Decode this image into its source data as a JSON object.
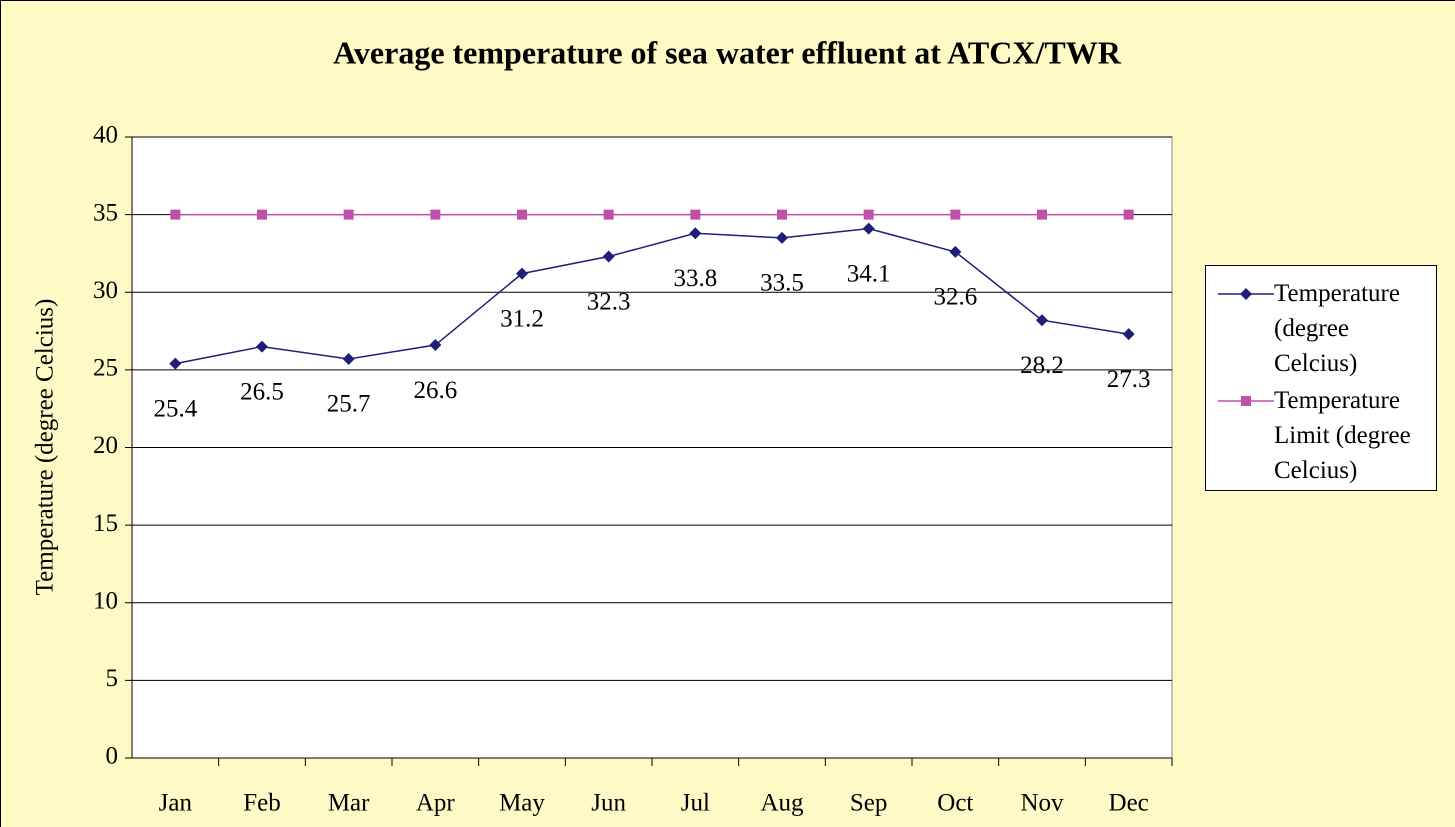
{
  "chart_data": {
    "type": "line",
    "title": "Average temperature of sea water effluent at ATCX/TWR",
    "y_label": "Temperature (degree Celcius)",
    "categories": [
      "Jan",
      "Feb",
      "Mar",
      "Apr",
      "May",
      "Jun",
      "Jul",
      "Aug",
      "Sep",
      "Oct",
      "Nov",
      "Dec"
    ],
    "series": [
      {
        "name": "Temperature (degree Celcius)",
        "color": "#1f1f78",
        "marker": "diamond",
        "data_labels": true,
        "values": [
          25.4,
          26.5,
          25.7,
          26.6,
          31.2,
          32.3,
          33.8,
          33.5,
          34.1,
          32.6,
          28.2,
          27.3
        ]
      },
      {
        "name": "Temperature Limit (degree Celcius)",
        "color": "#c050a8",
        "marker": "square",
        "data_labels": false,
        "values": [
          35,
          35,
          35,
          35,
          35,
          35,
          35,
          35,
          35,
          35,
          35,
          35
        ]
      }
    ],
    "ylim": [
      0,
      40
    ],
    "yticks": [
      0,
      5,
      10,
      15,
      20,
      25,
      30,
      35,
      40
    ],
    "grid": true,
    "legend": "right"
  }
}
